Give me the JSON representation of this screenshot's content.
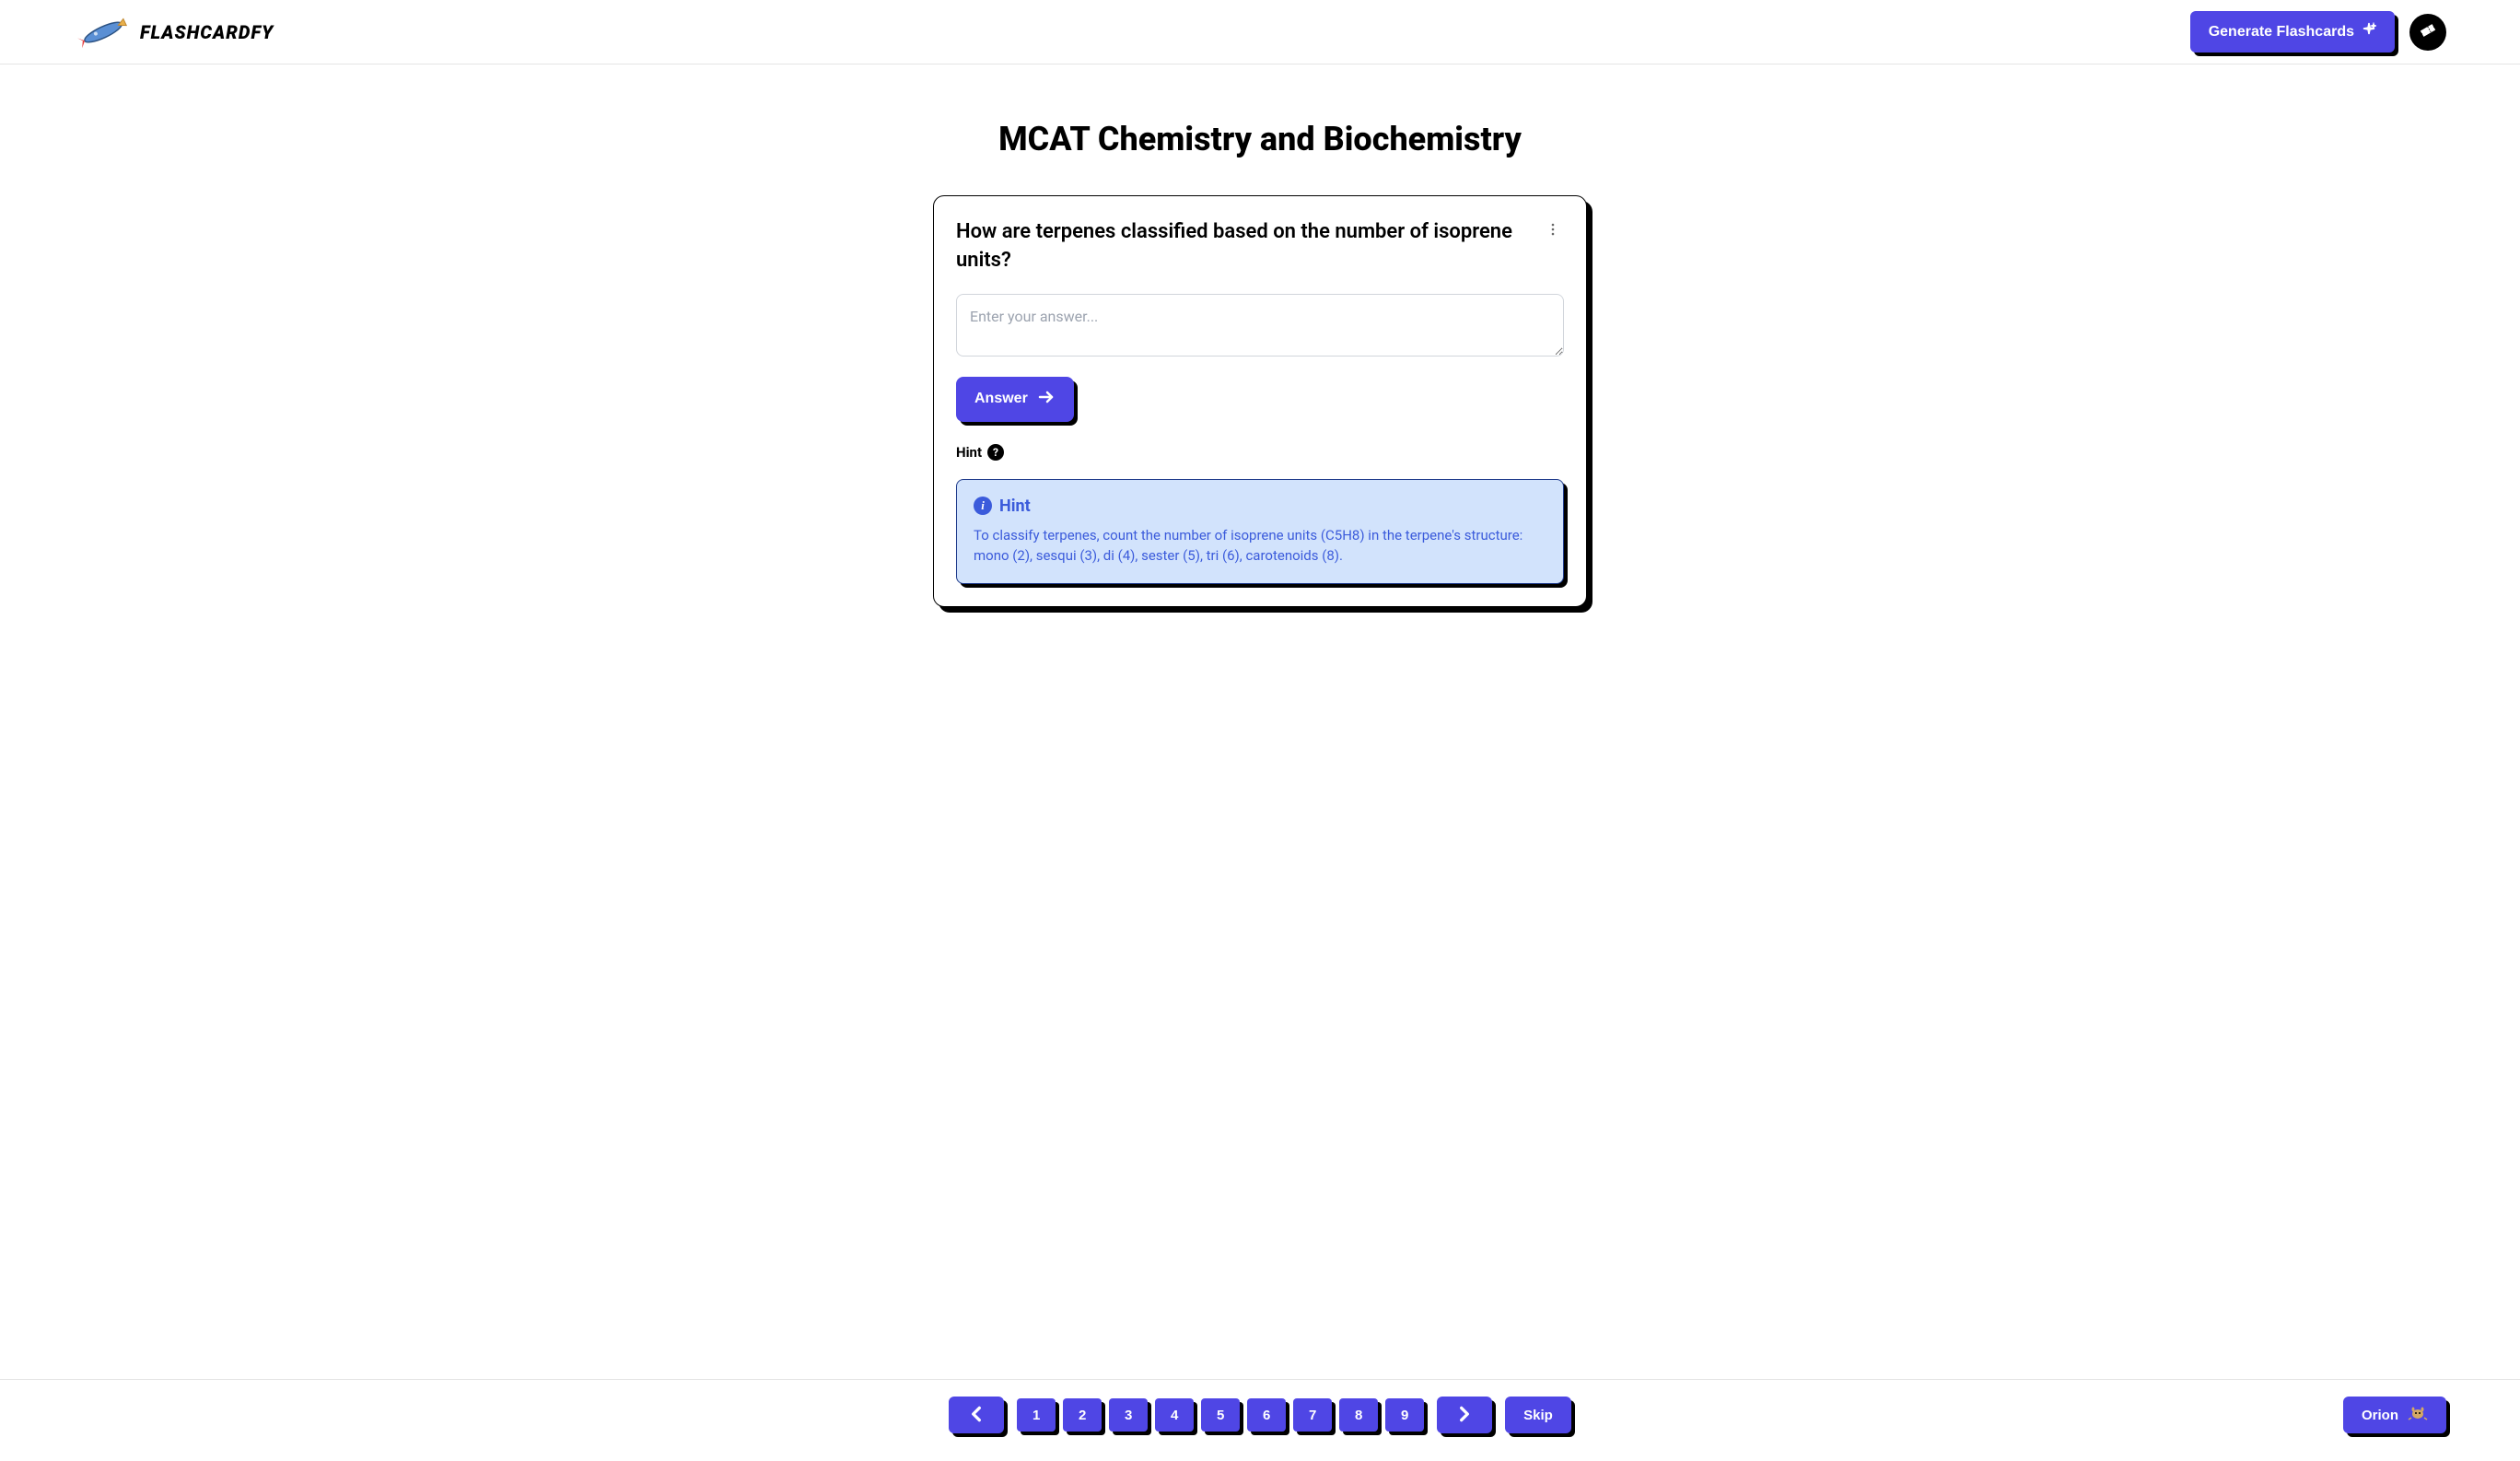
{
  "header": {
    "logo_text": "FLASHCARDFY",
    "generate_label": "Generate Flashcards"
  },
  "main": {
    "title": "MCAT Chemistry and Biochemistry",
    "card": {
      "question": "How are terpenes classified based on the number of isoprene units?",
      "answer_placeholder": "Enter your answer...",
      "answer_button_label": "Answer",
      "hint_toggle_label": "Hint",
      "hint_box": {
        "title": "Hint",
        "text": "To classify terpenes, count the number of isoprene units (C5H8) in the terpene's structure: mono (2), sesqui (3), di (4), sester (5), tri (6), carotenoids (8)."
      }
    }
  },
  "footer": {
    "pages": [
      "1",
      "2",
      "3",
      "4",
      "5",
      "6",
      "7",
      "8",
      "9"
    ],
    "skip_label": "Skip",
    "orion_label": "Orion"
  },
  "colors": {
    "primary": "#4f46e5",
    "hint_bg": "#d2e3fc",
    "hint_text": "#3b5bdb",
    "shadow": "#000000"
  }
}
